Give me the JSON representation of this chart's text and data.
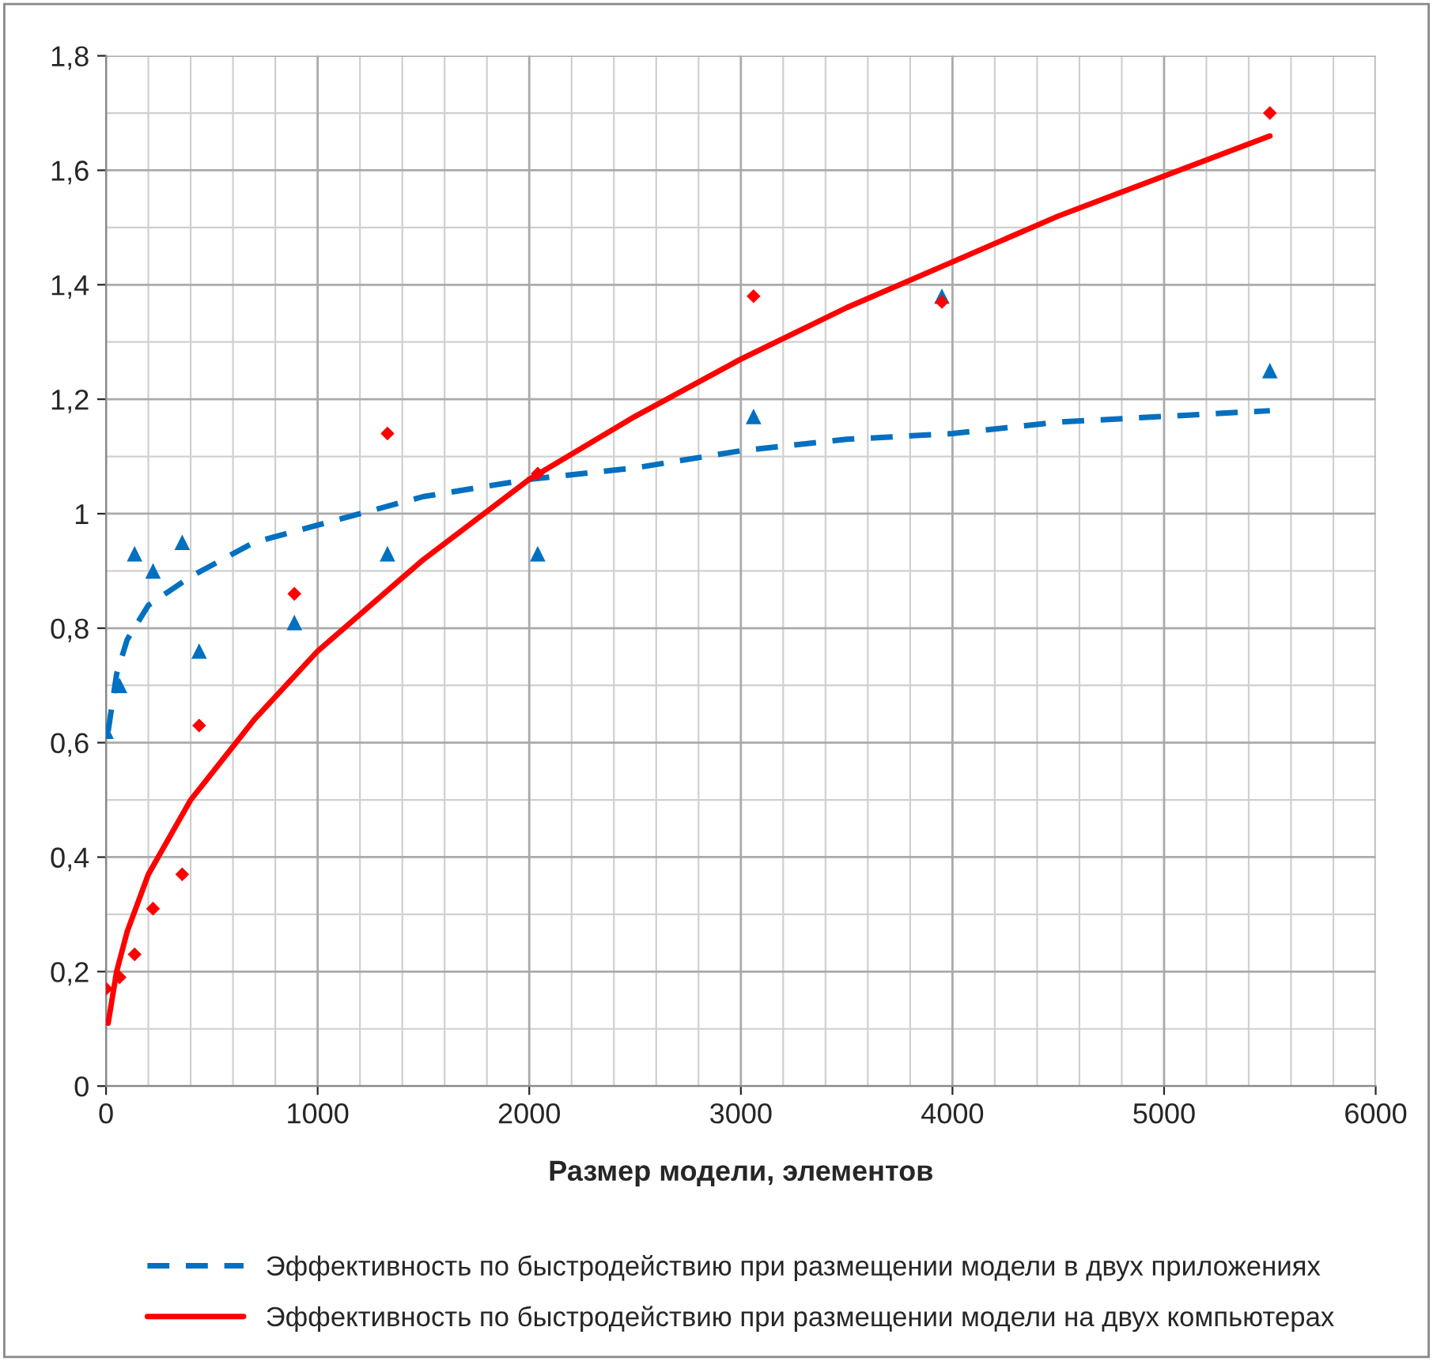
{
  "chart_data": {
    "type": "scatter",
    "xlabel": "Размер модели, элементов",
    "xlim": [
      0,
      6000
    ],
    "xticks": [
      0,
      1000,
      2000,
      3000,
      4000,
      5000,
      6000
    ],
    "ylim": [
      0,
      1.8
    ],
    "yticks": [
      {
        "value": 0,
        "label": "0"
      },
      {
        "value": 0.2,
        "label": "0,2"
      },
      {
        "value": 0.4,
        "label": "0,4"
      },
      {
        "value": 0.6,
        "label": "0,6"
      },
      {
        "value": 0.8,
        "label": "0,8"
      },
      {
        "value": 1,
        "label": "1"
      },
      {
        "value": 1.2,
        "label": "1,2"
      },
      {
        "value": 1.4,
        "label": "1,4"
      },
      {
        "value": 1.6,
        "label": "1,6"
      },
      {
        "value": 1.8,
        "label": "1,8"
      }
    ],
    "grid": true,
    "legend": "bottom",
    "series": [
      {
        "color": "#0070c0",
        "marker": "triangle",
        "x": [
          0,
          64,
          135,
          222,
          360,
          440,
          890,
          1330,
          2040,
          3060,
          3950,
          5500
        ],
        "values": [
          0.62,
          0.7,
          0.93,
          0.9,
          0.95,
          0.76,
          0.81,
          0.93,
          0.93,
          1.17,
          1.38,
          1.25
        ]
      },
      {
        "color": "#ff0000",
        "marker": "diamond",
        "x": [
          0,
          64,
          135,
          222,
          360,
          440,
          890,
          1330,
          2040,
          3060,
          3950,
          5500
        ],
        "values": [
          0.17,
          0.19,
          0.23,
          0.31,
          0.37,
          0.63,
          0.86,
          1.14,
          1.07,
          1.38,
          1.37,
          1.7
        ]
      },
      {
        "type": "line",
        "name": "Эффективность по быстродействию при размещении модели в двух приложениях",
        "color": "#0070c0",
        "line_style": "dashed",
        "marker": "none",
        "x": [
          10,
          50,
          100,
          200,
          400,
          700,
          1000,
          1500,
          2000,
          2500,
          3000,
          3500,
          4000,
          4500,
          5000,
          5500
        ],
        "values": [
          0.62,
          0.72,
          0.78,
          0.84,
          0.89,
          0.95,
          0.98,
          1.03,
          1.06,
          1.08,
          1.11,
          1.13,
          1.14,
          1.16,
          1.17,
          1.18
        ]
      },
      {
        "type": "line",
        "name": "Эффективность по быстродействию при размещении модели на двух компьютерах",
        "color": "#ff0000",
        "line_style": "solid",
        "marker": "none",
        "x": [
          10,
          50,
          100,
          200,
          400,
          700,
          1000,
          1500,
          2000,
          2500,
          3000,
          3500,
          4000,
          4500,
          5000,
          5500
        ],
        "values": [
          0.11,
          0.2,
          0.27,
          0.37,
          0.5,
          0.64,
          0.76,
          0.92,
          1.06,
          1.17,
          1.27,
          1.36,
          1.44,
          1.52,
          1.59,
          1.66
        ]
      }
    ]
  }
}
